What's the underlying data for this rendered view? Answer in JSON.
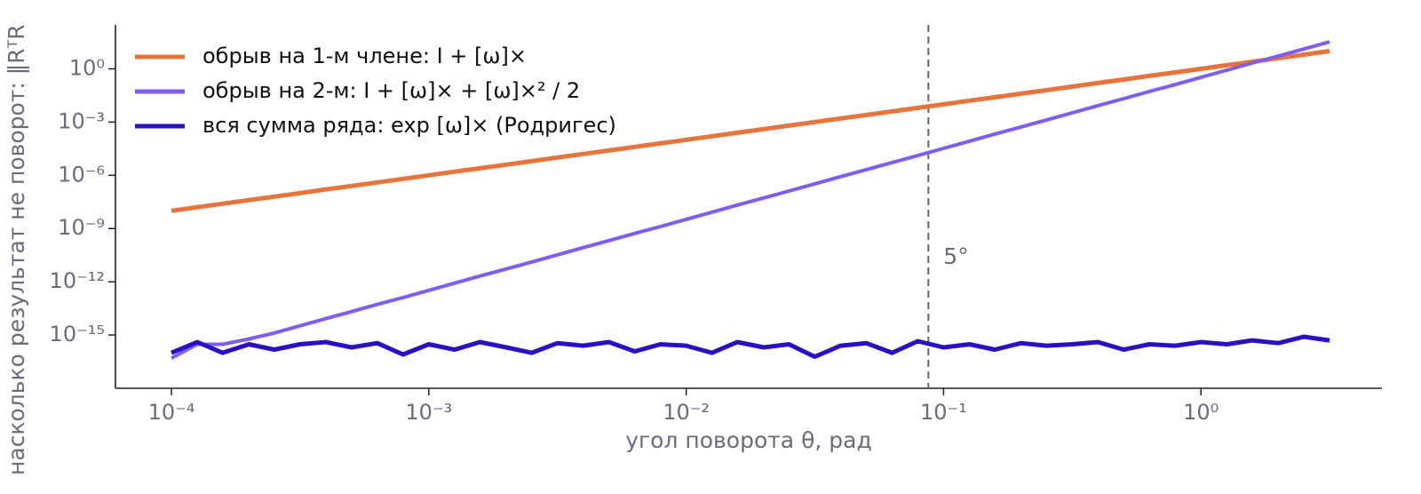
{
  "chart_data": {
    "type": "line",
    "xlabel": "угол поворота θ, рад",
    "ylabel": "насколько результат не поворот:  ‖RᵀR",
    "log_x": true,
    "log_y": true,
    "legend": "upper left",
    "xlim": [
      6.06e-05,
      5.05
    ],
    "ylim": [
      1e-18,
      300
    ],
    "xticks": [
      {
        "value": 0.0001,
        "label": "10⁻⁴"
      },
      {
        "value": 0.001,
        "label": "10⁻³"
      },
      {
        "value": 0.01,
        "label": "10⁻²"
      },
      {
        "value": 0.1,
        "label": "10⁻¹"
      },
      {
        "value": 1,
        "label": "10⁰"
      }
    ],
    "yticks": [
      {
        "value": 1,
        "label": "10⁰"
      },
      {
        "value": 0.001,
        "label": "10⁻³"
      },
      {
        "value": 1e-06,
        "label": "10⁻⁶"
      },
      {
        "value": 1e-09,
        "label": "10⁻⁹"
      },
      {
        "value": 1e-12,
        "label": "10⁻¹²"
      },
      {
        "value": 1e-15,
        "label": "10⁻¹⁵"
      }
    ],
    "vline": 0.0873,
    "annotation": "5°",
    "x": [
      0.0001,
      0.000126,
      0.000158,
      0.0002,
      0.000251,
      0.000316,
      0.000398,
      0.000501,
      0.000631,
      0.000794,
      0.001,
      0.00126,
      0.00158,
      0.002,
      0.00251,
      0.00316,
      0.00398,
      0.00501,
      0.00631,
      0.00794,
      0.01,
      0.0126,
      0.0158,
      0.02,
      0.0251,
      0.0316,
      0.0398,
      0.0501,
      0.0631,
      0.0794,
      0.1,
      0.126,
      0.158,
      0.2,
      0.251,
      0.316,
      0.398,
      0.501,
      0.631,
      0.794,
      1,
      1.26,
      1.58,
      2,
      2.51,
      3.16
    ],
    "series": [
      {
        "name": "обрыв на 1-м члене:  I + [ω]×",
        "color": "#e8743b",
        "width": 5,
        "values": [
          1e-08,
          1.6e-08,
          2.5e-08,
          4e-08,
          6.3e-08,
          1e-07,
          1.6e-07,
          2.5e-07,
          4e-07,
          6.3e-07,
          1e-06,
          1.6e-06,
          2.5e-06,
          4e-06,
          6.3e-06,
          1e-05,
          1.6e-05,
          2.5e-05,
          4e-05,
          6.3e-05,
          0.0001,
          0.00016,
          0.00025,
          0.0004,
          0.00063,
          0.001,
          0.0016,
          0.0025,
          0.004,
          0.0063,
          0.01,
          0.016,
          0.025,
          0.04,
          0.063,
          0.1,
          0.16,
          0.25,
          0.4,
          0.63,
          1,
          1.6,
          2.5,
          4,
          6.3,
          10
        ]
      },
      {
        "name": "обрыв на 2-м:  I + [ω]× + [ω]×² / 2",
        "color": "#7f5cf5",
        "width": 4,
        "values": [
          5e-17,
          3e-16,
          3e-16,
          6e-16,
          1.3e-15,
          3.3e-15,
          8.4e-15,
          2.1e-14,
          5.3e-14,
          1.3e-13,
          3.3e-13,
          8.4e-13,
          2.1e-12,
          5.3e-12,
          1.3e-11,
          3.3e-11,
          8.4e-11,
          2.1e-10,
          5.3e-10,
          1.3e-09,
          3.3e-09,
          8.4e-09,
          2.1e-08,
          5.3e-08,
          1.3e-07,
          3.3e-07,
          8.4e-07,
          2.1e-06,
          5.3e-06,
          1.3e-05,
          3.3e-05,
          8.4e-05,
          0.00021,
          0.00053,
          0.0013,
          0.0033,
          0.0084,
          0.021,
          0.053,
          0.13,
          0.33,
          0.84,
          2.1,
          5.3,
          13,
          33
        ]
      },
      {
        "name": "вся сумма ряда:  exp [ω]×  (Родригес)",
        "color": "#2a10c4",
        "width": 5,
        "values": [
          1e-16,
          4e-16,
          1e-16,
          3e-16,
          1.5e-16,
          3e-16,
          4e-16,
          2e-16,
          3.5e-16,
          8e-17,
          3e-16,
          1.5e-16,
          4e-16,
          2e-16,
          1e-16,
          3.5e-16,
          2.5e-16,
          4e-16,
          1.2e-16,
          3e-16,
          2.5e-16,
          1e-16,
          4e-16,
          2e-16,
          3e-16,
          6e-17,
          2.5e-16,
          3.5e-16,
          1e-16,
          4.5e-16,
          2e-16,
          3e-16,
          1.5e-16,
          3.5e-16,
          2.5e-16,
          3e-16,
          4e-16,
          1.5e-16,
          3e-16,
          2.5e-16,
          4e-16,
          3e-16,
          5e-16,
          3.5e-16,
          8e-16,
          5e-16
        ]
      }
    ]
  }
}
